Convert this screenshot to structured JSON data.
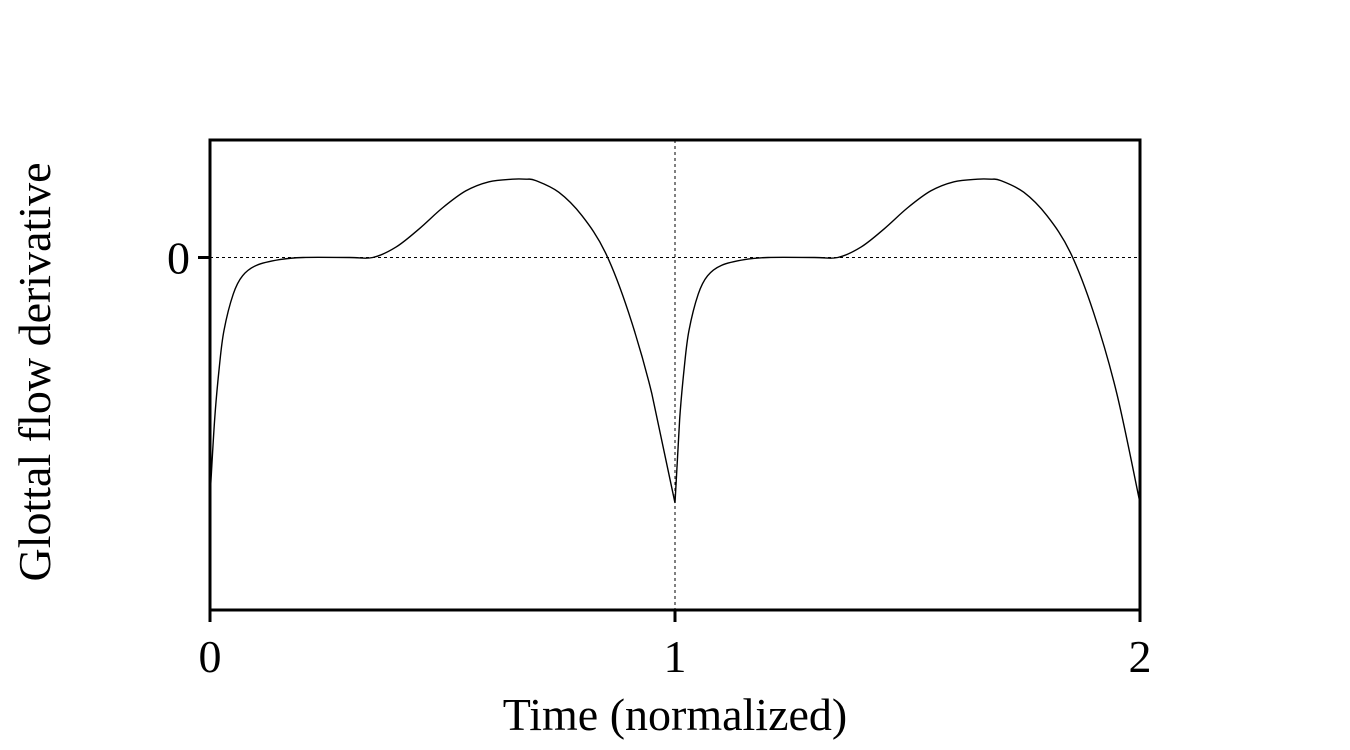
{
  "chart_data": {
    "type": "line",
    "xlabel": "Time (normalized)",
    "ylabel": "Glottal flow derivative",
    "xlim": [
      0,
      2
    ],
    "ylim": [
      -1.35,
      0.45
    ],
    "x_ticks": [
      {
        "value": 0,
        "label": "0"
      },
      {
        "value": 1,
        "label": "1"
      },
      {
        "value": 2,
        "label": "2"
      }
    ],
    "y_ticks": [
      {
        "value": 0,
        "label": "0"
      }
    ],
    "reference_lines": {
      "horizontal_y": 0,
      "vertical_x": 1,
      "style": "dotted"
    },
    "grid": false,
    "legend": false,
    "series": [
      {
        "x": [
          0.0,
          0.01,
          0.02,
          0.03,
          0.05,
          0.07,
          0.1,
          0.15,
          0.2,
          0.3,
          0.35,
          0.4,
          0.45,
          0.5,
          0.55,
          0.6,
          0.65,
          0.68,
          0.7,
          0.75,
          0.8,
          0.85,
          0.9,
          0.95,
          1.0,
          1.01,
          1.02,
          1.03,
          1.05,
          1.07,
          1.1,
          1.15,
          1.2,
          1.3,
          1.35,
          1.4,
          1.45,
          1.5,
          1.55,
          1.6,
          1.65,
          1.68,
          1.7,
          1.75,
          1.8,
          1.85,
          1.9,
          1.95,
          2.0
        ],
        "y": [
          -0.92,
          -0.62,
          -0.42,
          -0.28,
          -0.14,
          -0.07,
          -0.03,
          -0.008,
          0.0,
          0.0,
          0.0,
          0.04,
          0.11,
          0.19,
          0.255,
          0.29,
          0.3,
          0.3,
          0.295,
          0.25,
          0.16,
          0.02,
          -0.21,
          -0.52,
          -0.94,
          -0.62,
          -0.42,
          -0.28,
          -0.14,
          -0.07,
          -0.03,
          -0.008,
          0.0,
          0.0,
          0.0,
          0.04,
          0.11,
          0.19,
          0.255,
          0.29,
          0.3,
          0.3,
          0.295,
          0.25,
          0.16,
          0.02,
          -0.21,
          -0.52,
          -0.94
        ]
      }
    ]
  }
}
